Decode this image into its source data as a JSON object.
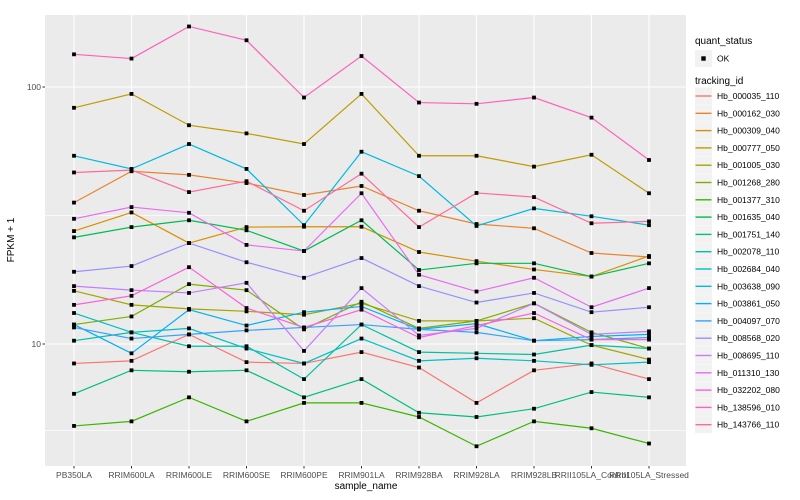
{
  "figure": {
    "background": "#ffffff",
    "panel_background": "#ebebeb",
    "gridline_color": "#ffffff",
    "axis_text_color": "#4d4d4d",
    "tick_mark_color": "#333333",
    "marker_color": "#000000"
  },
  "axes": {
    "y": {
      "title": "FPKM + 1",
      "ticks": [
        {
          "label": "100",
          "value": 100
        },
        {
          "label": "10",
          "value": 10
        }
      ]
    },
    "x": {
      "title": "sample_name"
    }
  },
  "legend": {
    "quant_status_title": "quant_status",
    "quant_status_items": [
      {
        "label": "OK",
        "marker": "black-point"
      }
    ],
    "tracking_id_title": "tracking_id",
    "key_background": "#f2f2f2"
  },
  "chart_data": {
    "type": "line",
    "x_label": "sample_name",
    "y_label": "FPKM + 1",
    "y_scale": "log10",
    "y_breaks": [
      100,
      10
    ],
    "y_minor_breaks": [
      31.6,
      4.6
    ],
    "ylim": [
      3.35,
      191
    ],
    "grid": true,
    "legend_position": "right",
    "point_marker": "black-square",
    "categories": [
      "PB350LA",
      "RRIM600LA",
      "RRIM600LE",
      "RRIM600SE",
      "RRIM600PE",
      "RRIM901LA",
      "RRIM928BA",
      "RRIM928LA",
      "RRIM928LB",
      "RRII105LA_Control",
      "RRII105LA_Stressed"
    ],
    "series": [
      {
        "name": "Hb_000035_110",
        "color": "#F8766D",
        "values": [
          8.4,
          8.6,
          10.9,
          8.5,
          8.4,
          9.3,
          8.1,
          5.9,
          7.9,
          8.4,
          7.3
        ]
      },
      {
        "name": "Hb_000162_030",
        "color": "#EA8331",
        "values": [
          35.5,
          47,
          45.5,
          42.3,
          38,
          41.2,
          33,
          29.3,
          28.2,
          22.6,
          21.8
        ]
      },
      {
        "name": "Hb_000309_040",
        "color": "#D89000",
        "values": [
          27.5,
          32.5,
          24.7,
          28.5,
          28.6,
          28.6,
          22.8,
          21.0,
          19.5,
          18.3,
          22.0
        ]
      },
      {
        "name": "Hb_000777_050",
        "color": "#C09B00",
        "values": [
          83,
          94,
          71,
          66,
          60,
          94,
          54,
          54,
          49,
          54.5,
          38.6
        ]
      },
      {
        "name": "Hb_001005_030",
        "color": "#A3A500",
        "values": [
          16.1,
          14.2,
          13.7,
          13.4,
          13.0,
          14.4,
          12.3,
          12.3,
          12.6,
          9.9,
          8.7
        ]
      },
      {
        "name": "Hb_001268_280",
        "color": "#7CAE00",
        "values": [
          11.9,
          12.8,
          17.1,
          16.2,
          11.4,
          14.6,
          11.5,
          12.3,
          14.4,
          11.1,
          9.6
        ]
      },
      {
        "name": "Hb_001377_310",
        "color": "#39B600",
        "values": [
          4.8,
          5.0,
          6.2,
          5.0,
          5.9,
          5.9,
          5.2,
          4.0,
          5.0,
          4.7,
          4.1
        ]
      },
      {
        "name": "Hb_001635_040",
        "color": "#00BB4E",
        "values": [
          26,
          28.5,
          30.3,
          27.7,
          23,
          30.3,
          19.4,
          20.6,
          20.6,
          18.3,
          20.6
        ]
      },
      {
        "name": "Hb_001751_140",
        "color": "#00BF7D",
        "values": [
          6.4,
          7.9,
          7.8,
          7.9,
          6.2,
          7.3,
          5.4,
          5.2,
          5.6,
          6.5,
          6.2
        ]
      },
      {
        "name": "Hb_002078_110",
        "color": "#00C1A3",
        "values": [
          10.3,
          11.1,
          9.8,
          9.8,
          7.3,
          11.9,
          9.3,
          9.2,
          9.1,
          9.9,
          9.6
        ]
      },
      {
        "name": "Hb_002684_040",
        "color": "#00BFC4",
        "values": [
          13.2,
          11.1,
          11.5,
          9.6,
          8.4,
          10.5,
          8.6,
          8.8,
          8.6,
          8.3,
          8.5
        ]
      },
      {
        "name": "Hb_003638_090",
        "color": "#00BAE0",
        "values": [
          54,
          48,
          60,
          48,
          29,
          56,
          45,
          28.8,
          33.7,
          31.4,
          29
        ]
      },
      {
        "name": "Hb_003861_050",
        "color": "#00B0F6",
        "values": [
          11.9,
          9.2,
          13.6,
          11.8,
          13.3,
          14.0,
          11.4,
          12.0,
          10.3,
          10.7,
          10.9
        ]
      },
      {
        "name": "Hb_004097_070",
        "color": "#35A2FF",
        "values": [
          11.6,
          10.5,
          10.9,
          11.3,
          11.6,
          11.9,
          11.4,
          11.1,
          10.3,
          10.4,
          10.6
        ]
      },
      {
        "name": "Hb_008568_020",
        "color": "#9590FF",
        "values": [
          19.1,
          20.1,
          24.7,
          20.8,
          18.1,
          21.6,
          16.8,
          14.5,
          15.8,
          13.3,
          13.9
        ]
      },
      {
        "name": "Hb_008695_110",
        "color": "#C77CFF",
        "values": [
          16.8,
          16.2,
          15.8,
          17.3,
          9.4,
          16.5,
          10.8,
          11.5,
          14.4,
          10.9,
          11.2
        ]
      },
      {
        "name": "Hb_011310_130",
        "color": "#E76BF3",
        "values": [
          30.7,
          34.1,
          32.4,
          24.3,
          23,
          38.6,
          18.6,
          16,
          18.1,
          13.9,
          16.5
        ]
      },
      {
        "name": "Hb_032202_080",
        "color": "#FA62DB",
        "values": [
          14.2,
          15.4,
          19.9,
          13.8,
          11.6,
          13.6,
          10.6,
          11.8,
          13.2,
          10.4,
          10.4
        ]
      },
      {
        "name": "Hb_138596_010",
        "color": "#FF62BC",
        "values": [
          134,
          129,
          172,
          152,
          91,
          132,
          87,
          86,
          91,
          76,
          52
        ]
      },
      {
        "name": "Hb_143766_110",
        "color": "#FF6A98",
        "values": [
          46.5,
          47.5,
          39,
          43,
          33,
          46,
          28.5,
          38.7,
          37.3,
          29.5,
          30
        ]
      }
    ]
  }
}
